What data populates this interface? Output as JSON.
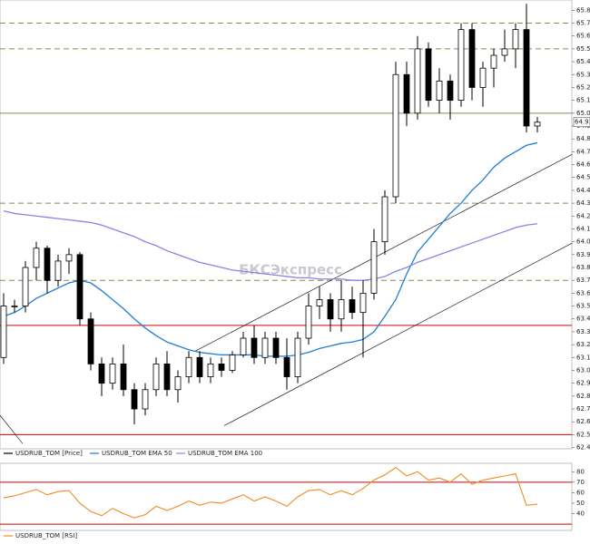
{
  "chart_data": [
    {
      "type": "candlestick",
      "watermark": "БКСЭкспресс",
      "ylim": [
        62.39,
        65.88
      ],
      "yticks": [
        65.8,
        65.7,
        65.6,
        65.5,
        65.4,
        65.3,
        65.2,
        65.1,
        {
          "value": 65,
          "label": "65.0"
        },
        64.9,
        64.8,
        64.7,
        64.6,
        64.5,
        64.4,
        64.3,
        64.2,
        64.1,
        {
          "value": 64,
          "label": "64.0"
        },
        63.9,
        63.8,
        63.7,
        63.6,
        63.5,
        63.4,
        63.3,
        63.2,
        63.1,
        {
          "value": 63,
          "label": "63.0"
        },
        62.9,
        62.8,
        62.7,
        62.6,
        62.5,
        62.4
      ],
      "last_price": 64.93,
      "hlines": [
        {
          "value": 65.7,
          "style": "dashed",
          "color": "#8a8a50"
        },
        {
          "value": 65.5,
          "style": "dashed",
          "color": "#8a8a50"
        },
        {
          "value": 65.0,
          "style": "solid",
          "color": "#8a8a50"
        },
        {
          "value": 64.3,
          "style": "dashed",
          "color": "#8a8a50"
        },
        {
          "value": 63.7,
          "style": "dashed",
          "color": "#8a8a50"
        },
        {
          "value": 63.35,
          "style": "solid",
          "color": "#d00000"
        },
        {
          "value": 62.5,
          "style": "solid",
          "color": "#d00000"
        }
      ],
      "trendlines": [
        {
          "x": [
            17.6,
            52.2
          ],
          "y": [
            63.15,
            64.68
          ]
        },
        {
          "x": [
            20.25,
            52.2
          ],
          "y": [
            62.57,
            63.99
          ]
        },
        {
          "x": [
            -0.33,
            1.75
          ],
          "y": [
            62.65,
            62.43
          ]
        }
      ],
      "series": [
        {
          "name": "USDRUB_TOM [Price]",
          "color": "#000000",
          "open": [
            63.1,
            63.5,
            63.5,
            63.8,
            63.95,
            63.7,
            63.85,
            63.9,
            63.4,
            63.05,
            62.9,
            63.05,
            62.85,
            62.7,
            62.85,
            63.05,
            62.85,
            62.95,
            63.1,
            62.95,
            63.05,
            63.0,
            63.12,
            63.25,
            63.1,
            63.25,
            63.1,
            62.95,
            63.25,
            63.5,
            63.55,
            63.4,
            63.55,
            63.45,
            63.6,
            64.0,
            64.35,
            65.3,
            65.0,
            65.5,
            65.1,
            65.25,
            65.1,
            65.65,
            65.2,
            65.35,
            65.45,
            65.5,
            65.65,
            64.9
          ],
          "high": [
            63.6,
            63.55,
            63.85,
            64.0,
            63.97,
            63.9,
            63.95,
            63.92,
            63.45,
            63.1,
            63.1,
            63.2,
            62.9,
            62.9,
            63.1,
            63.15,
            63.0,
            63.15,
            63.15,
            63.1,
            63.1,
            63.15,
            63.3,
            63.35,
            63.3,
            63.3,
            63.25,
            63.3,
            63.6,
            63.65,
            63.6,
            63.7,
            63.65,
            63.7,
            64.1,
            64.4,
            65.4,
            65.4,
            65.6,
            65.55,
            65.35,
            65.3,
            65.7,
            65.7,
            65.4,
            65.5,
            65.65,
            65.7,
            65.85,
            64.97
          ],
          "low": [
            63.05,
            63.45,
            63.45,
            63.7,
            63.6,
            63.65,
            63.75,
            63.35,
            63.0,
            62.8,
            62.85,
            62.8,
            62.58,
            62.65,
            62.8,
            62.8,
            62.75,
            62.9,
            62.9,
            62.9,
            62.95,
            62.98,
            63.1,
            63.05,
            63.05,
            63.05,
            62.85,
            62.9,
            63.2,
            63.4,
            63.3,
            63.3,
            63.4,
            63.1,
            63.55,
            63.9,
            64.3,
            64.9,
            64.95,
            65.05,
            65.0,
            64.95,
            65.05,
            65.1,
            65.05,
            65.2,
            65.4,
            65.35,
            64.85,
            64.85
          ],
          "close": [
            63.5,
            63.5,
            63.8,
            63.95,
            63.7,
            63.85,
            63.9,
            63.4,
            63.05,
            62.9,
            63.05,
            62.85,
            62.7,
            62.85,
            63.05,
            62.85,
            62.95,
            63.1,
            62.95,
            63.05,
            63.0,
            63.12,
            63.25,
            63.1,
            63.25,
            63.1,
            62.95,
            63.25,
            63.5,
            63.55,
            63.4,
            63.55,
            63.45,
            63.6,
            64.0,
            64.35,
            65.3,
            65.0,
            65.5,
            65.1,
            65.25,
            65.1,
            65.65,
            65.2,
            65.35,
            65.45,
            65.5,
            65.65,
            64.9,
            64.93
          ]
        },
        {
          "name": "USDRUB_TOM EMA 50",
          "color": "#1e7fd6",
          "values": [
            63.42,
            63.45,
            63.5,
            63.56,
            63.6,
            63.64,
            63.68,
            63.7,
            63.68,
            63.62,
            63.55,
            63.48,
            63.4,
            63.33,
            63.27,
            63.22,
            63.19,
            63.16,
            63.14,
            63.13,
            63.12,
            63.12,
            63.12,
            63.12,
            63.11,
            63.11,
            63.11,
            63.12,
            63.14,
            63.17,
            63.19,
            63.21,
            63.22,
            63.24,
            63.3,
            63.42,
            63.55,
            63.75,
            63.92,
            64.02,
            64.12,
            64.22,
            64.3,
            64.4,
            64.48,
            64.58,
            64.65,
            64.7,
            64.75,
            64.77
          ]
        },
        {
          "name": "USDRUB_TOM EMA 100",
          "color": "#8c82e6",
          "values": [
            64.24,
            64.22,
            64.21,
            64.2,
            64.19,
            64.18,
            64.17,
            64.16,
            64.15,
            64.13,
            64.1,
            64.07,
            64.04,
            64.0,
            63.97,
            63.93,
            63.9,
            63.87,
            63.84,
            63.82,
            63.8,
            63.78,
            63.77,
            63.76,
            63.75,
            63.74,
            63.73,
            63.72,
            63.72,
            63.71,
            63.71,
            63.71,
            63.7,
            63.7,
            63.71,
            63.73,
            63.77,
            63.8,
            63.84,
            63.87,
            63.9,
            63.93,
            63.96,
            63.99,
            64.02,
            64.05,
            64.08,
            64.11,
            64.13,
            64.14
          ]
        }
      ]
    },
    {
      "type": "line",
      "ylim": [
        24,
        88
      ],
      "yticks": [
        80,
        70,
        60,
        50,
        40
      ],
      "levels": [
        70,
        30
      ],
      "level_color": "#d00000",
      "series": [
        {
          "name": "USDRUB_TOM [RSI]",
          "color": "#f08c1e",
          "values": [
            55,
            57,
            60,
            63,
            58,
            61,
            62,
            50,
            42,
            38,
            45,
            40,
            36,
            39,
            47,
            43,
            47,
            52,
            48,
            51,
            50,
            54,
            58,
            52,
            56,
            52,
            47,
            56,
            62,
            63,
            58,
            62,
            58,
            64,
            72,
            77,
            84,
            76,
            80,
            72,
            74,
            70,
            78,
            68,
            72,
            74,
            76,
            78,
            48,
            49
          ]
        }
      ]
    }
  ]
}
